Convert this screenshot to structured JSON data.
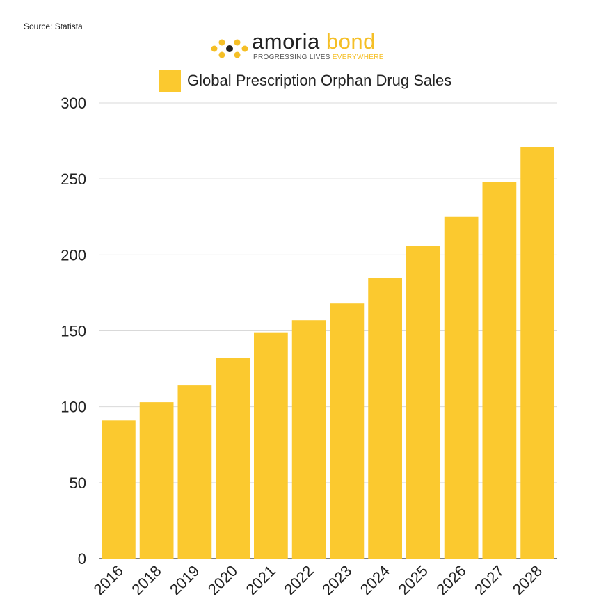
{
  "source": "Source: Statista",
  "logo": {
    "brand_dark": "amoria",
    "brand_accent": "bond",
    "tagline_dark": "PROGRESSING LIVES",
    "tagline_accent": "EVERYWHERE"
  },
  "colors": {
    "bar": "#fbc92f",
    "grid": "#d9d9d9",
    "axis": "#333333",
    "accent": "#f5bf26"
  },
  "chart_data": {
    "type": "bar",
    "categories": [
      "2016",
      "2018",
      "2019",
      "2020",
      "2021",
      "2022",
      "2023",
      "2024",
      "2025",
      "2026",
      "2027",
      "2028"
    ],
    "series": [
      {
        "name": "Global Prescription Orphan Drug Sales",
        "values": [
          91,
          103,
          114,
          132,
          149,
          157,
          168,
          185,
          206,
          225,
          248,
          271
        ]
      }
    ],
    "ylim": [
      0,
      300
    ],
    "yticks": [
      0,
      50,
      100,
      150,
      200,
      250,
      300
    ],
    "grid": true,
    "legend": "top-center",
    "title": "",
    "xlabel": "",
    "ylabel": ""
  }
}
